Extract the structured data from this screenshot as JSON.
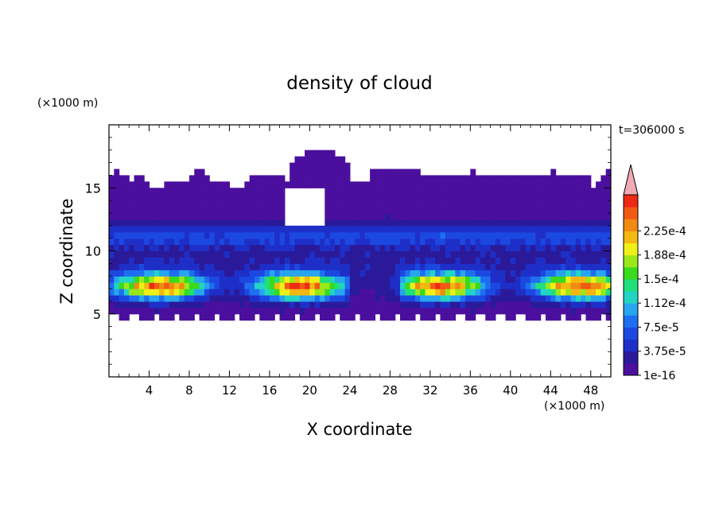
{
  "chart_data": {
    "type": "heatmap",
    "title": "density of cloud",
    "xlabel": "X coordinate",
    "ylabel": "Z coordinate",
    "x_unit": "(×1000 m)",
    "y_unit": "(×1000 m)",
    "time_label": "t=306000 s",
    "xlim": [
      0,
      50
    ],
    "ylim": [
      0,
      20
    ],
    "x_ticks": [
      4,
      8,
      12,
      16,
      20,
      24,
      28,
      32,
      36,
      40,
      44,
      48
    ],
    "y_ticks": [
      5,
      10,
      15
    ],
    "colorbar": {
      "labels": [
        "1e-16",
        "3.75e-5",
        "7.5e-5",
        "1.12e-4",
        "1.5e-4",
        "1.88e-4",
        "2.25e-4"
      ],
      "colors": [
        "#4b0f9e",
        "#2a1a9a",
        "#1e2fc8",
        "#1b48e0",
        "#1e6ff0",
        "#27a5ee",
        "#22d4c4",
        "#1fe07a",
        "#3ada1c",
        "#9be81a",
        "#f0f018",
        "#f5b812",
        "#f08a12",
        "#f25a14",
        "#ee2a14"
      ],
      "extend_color": "#f2aab4"
    }
  },
  "scale_max": 0.00025
}
